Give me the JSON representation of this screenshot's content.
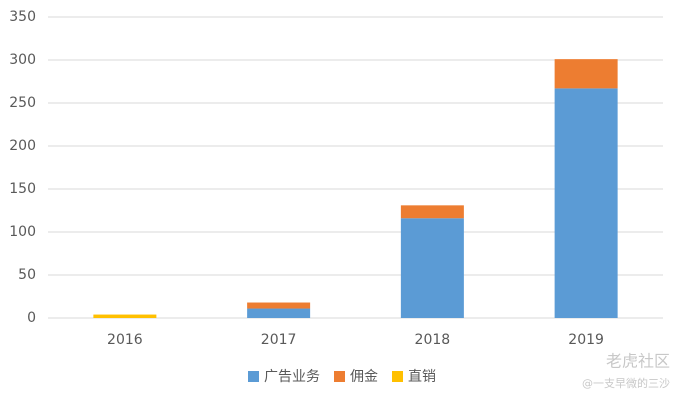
{
  "chart_data": {
    "type": "stacked-bar",
    "categories": [
      "2016",
      "2017",
      "2018",
      "2019"
    ],
    "series": [
      {
        "name": "广告业务",
        "color": "#5b9bd5",
        "values": [
          0,
          11,
          116,
          267
        ]
      },
      {
        "name": "佣金",
        "color": "#ed7d31",
        "values": [
          0,
          7,
          15,
          34
        ]
      },
      {
        "name": "直销",
        "color": "#ffc000",
        "values": [
          4,
          0,
          0,
          0
        ]
      }
    ],
    "ylim": [
      0,
      350
    ],
    "yticks": [
      0,
      50,
      100,
      150,
      200,
      250,
      300,
      350
    ],
    "grid": true,
    "legend": "bottom"
  },
  "watermark": {
    "site": "老虎社区",
    "author": "@一支早微的三沙"
  }
}
